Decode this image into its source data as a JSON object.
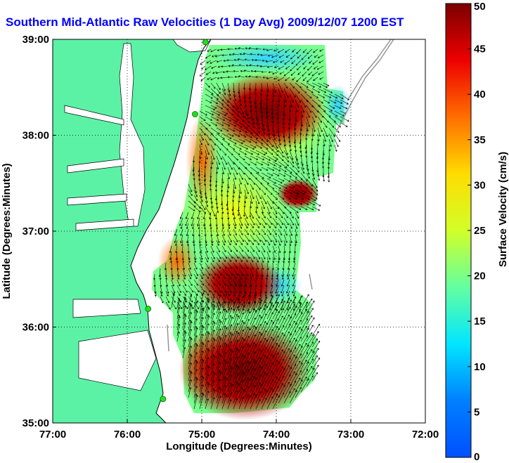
{
  "title": "Southern Mid-Atlantic Raw Velocities (1 Day Avg) 2009/12/07 1200 EST",
  "map": {
    "xlabel": "Longitude (Degrees:Minutes)",
    "ylabel": "Latitude (Degrees:Minutes)",
    "xlim": [
      -77,
      -72
    ],
    "ylim": [
      35,
      39
    ],
    "x_ticks": [
      {
        "value": -77,
        "label": "77:00"
      },
      {
        "value": -76,
        "label": "76:00"
      },
      {
        "value": -75,
        "label": "75:00"
      },
      {
        "value": -74,
        "label": "74:00"
      },
      {
        "value": -73,
        "label": "73:00"
      },
      {
        "value": -72,
        "label": "72:00"
      }
    ],
    "y_ticks": [
      {
        "value": 35,
        "label": "35:00"
      },
      {
        "value": 36,
        "label": "36:00"
      },
      {
        "value": 37,
        "label": "37:00"
      },
      {
        "value": 38,
        "label": "38:00"
      },
      {
        "value": 39,
        "label": "39:00"
      }
    ],
    "grid": "dotted",
    "land_color": "#5cf2a6",
    "shelf_line_color": "#909090",
    "station_color": "#22dd22"
  },
  "colorbar": {
    "label": "Surface Velocity (cm/s)",
    "min": 0,
    "max": 50,
    "ticks": [
      {
        "value": 0,
        "label": "0"
      },
      {
        "value": 5,
        "label": "5"
      },
      {
        "value": 10,
        "label": "10"
      },
      {
        "value": 15,
        "label": "15"
      },
      {
        "value": 20,
        "label": "20"
      },
      {
        "value": 25,
        "label": "25"
      },
      {
        "value": 30,
        "label": "30"
      },
      {
        "value": 35,
        "label": "35"
      },
      {
        "value": 40,
        "label": "40"
      },
      {
        "value": 45,
        "label": "45"
      },
      {
        "value": 50,
        "label": "50"
      }
    ],
    "colormap": "jet"
  },
  "stations": [
    {
      "lon": -74.95,
      "lat": 38.97
    },
    {
      "lon": -75.09,
      "lat": 38.22
    },
    {
      "lon": -75.72,
      "lat": 36.19
    },
    {
      "lon": -75.52,
      "lat": 35.25
    }
  ]
}
